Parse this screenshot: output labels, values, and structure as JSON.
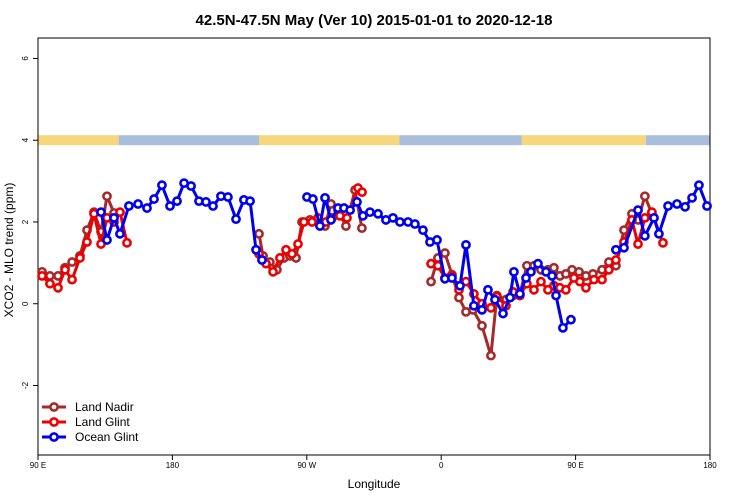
{
  "chart_data": {
    "type": "line",
    "title": "42.5N-47.5N May (Ver 10)   2015-01-01 to 2020-12-18",
    "x_label": "Longitude",
    "y_label": "XCO2 - MLO trend (ppm)",
    "xlim": [
      90,
      540
    ],
    "ylim": [
      -3.7,
      6.5
    ],
    "xticks": [
      {
        "value": 90,
        "label": "90 E"
      },
      180,
      {
        "value": 270,
        "label": "90 W"
      },
      {
        "value": 360,
        "label": "0"
      },
      {
        "value": 450,
        "label": "90 E"
      },
      {
        "value": 540,
        "label": "180"
      }
    ],
    "yticks": [
      -2,
      0,
      2,
      4,
      6
    ],
    "legend": "bottom-left",
    "surface_band": {
      "y": 4,
      "segments": [
        {
          "from": 90,
          "to": 144,
          "color": "#f7d77b"
        },
        {
          "from": 144,
          "to": 238,
          "color": "#a9bedb"
        },
        {
          "from": 238,
          "to": 332,
          "color": "#f7d77b"
        },
        {
          "from": 332,
          "to": 414,
          "color": "#a9bedb"
        },
        {
          "from": 414,
          "to": 497,
          "color": "#f7d77b"
        },
        {
          "from": 497,
          "to": 540,
          "color": "#a9bedb"
        }
      ]
    },
    "series": [
      {
        "name": "Land Nadir",
        "color": "#a52a2a",
        "x": [
          92.7,
          98.0,
          103.4,
          108.1,
          112.8,
          118.1,
          122.8,
          127.5,
          132.2,
          136.2,
          140.9,
          null,
          238.0,
          240.7,
          245.3,
          250.0,
          254.7,
          258.7,
          262.8,
          266.8,
          272.1,
          276.8,
          282.2,
          286.2,
          290.9,
          296.2,
          302.3,
          306.9,
          null,
          353.2,
          357.8,
          362.5,
          367.2,
          371.9,
          376.6,
          381.3,
          387.3,
          393.3,
          397.3,
          403.4,
          408.1,
          412.7,
          417.4,
          422.1,
          426.8,
          431.5,
          435.5,
          439.5,
          443.5,
          447.6,
          452.3,
          456.9,
          461.6,
          467.7,
          472.3,
          477.0,
          482.4,
          487.7,
          491.8,
          496.4,
          501.1
        ],
        "values": [
          0.78,
          0.68,
          0.68,
          0.88,
          1.02,
          1.17,
          1.8,
          2.24,
          1.76,
          2.63,
          2.22,
          null,
          1.71,
          1.17,
          1.02,
          0.83,
          1.12,
          1.17,
          1.12,
          2.0,
          2.05,
          2.0,
          1.9,
          2.44,
          2.29,
          1.9,
          2.78,
          1.85,
          null,
          0.54,
          1.12,
          1.24,
          0.71,
          0.15,
          -0.2,
          -0.15,
          -0.54,
          -1.27,
          0.2,
          0.1,
          0.2,
          0.24,
          0.93,
          0.93,
          0.83,
          0.83,
          0.88,
          0.68,
          0.73,
          0.83,
          0.78,
          0.68,
          0.73,
          0.83,
          1.02,
          0.93,
          1.8,
          2.2,
          2.05,
          2.63,
          2.2
        ]
      },
      {
        "name": "Land Glint",
        "color": "#ee0000",
        "x": [
          92.7,
          98.0,
          103.4,
          108.1,
          112.8,
          118.1,
          122.8,
          127.5,
          132.2,
          136.2,
          140.9,
          144.9,
          149.6,
          null,
          238.0,
          242.7,
          247.4,
          252.0,
          256.1,
          260.1,
          264.1,
          268.1,
          273.5,
          277.5,
          282.8,
          286.9,
          292.2,
          296.9,
          304.3,
          307.0,
          null,
          353.2,
          357.8,
          362.5,
          367.2,
          371.9,
          376.6,
          381.9,
          387.3,
          393.3,
          397.3,
          403.4,
          408.1,
          412.7,
          417.4,
          422.1,
          426.8,
          431.5,
          435.5,
          439.5,
          443.5,
          448.9,
          452.9,
          456.9,
          462.3,
          467.7,
          472.3,
          477.0,
          482.4,
          487.7,
          491.8,
          496.4,
          501.1,
          508.5
        ],
        "values": [
          0.68,
          0.49,
          0.39,
          0.83,
          0.59,
          1.12,
          1.51,
          2.2,
          1.46,
          2.1,
          2.0,
          2.24,
          1.49,
          null,
          1.22,
          0.98,
          0.78,
          1.12,
          1.32,
          1.22,
          1.46,
          2.0,
          2.0,
          2.1,
          2.0,
          2.1,
          2.15,
          2.1,
          2.83,
          2.73,
          null,
          0.98,
          0.93,
          0.63,
          0.68,
          0.34,
          0.54,
          0.24,
          0.0,
          -0.1,
          0.17,
          -0.05,
          0.29,
          0.2,
          0.49,
          0.34,
          0.54,
          0.34,
          0.44,
          0.39,
          0.34,
          0.63,
          0.54,
          0.39,
          0.59,
          0.59,
          0.83,
          1.07,
          1.51,
          2.05,
          1.46,
          2.1,
          2.24,
          1.49
        ]
      },
      {
        "name": "Ocean Glint",
        "color": "#0000ee",
        "x": [
          132.2,
          136.2,
          140.9,
          144.9,
          150.9,
          157.0,
          163.0,
          167.7,
          173.0,
          178.4,
          183.1,
          187.8,
          192.5,
          197.8,
          202.5,
          207.2,
          212.5,
          217.2,
          222.6,
          227.9,
          232.0,
          236.0,
          240.0,
          null,
          270.1,
          274.1,
          278.8,
          282.2,
          286.2,
          290.9,
          294.9,
          299.0,
          303.6,
          307.6,
          312.3,
          317.7,
          323.0,
          327.7,
          332.4,
          337.8,
          342.4,
          347.8,
          352.5,
          357.2,
          362.5,
          367.2,
          372.6,
          376.6,
          381.9,
          387.3,
          391.3,
          396.0,
          401.4,
          406.1,
          408.7,
          412.7,
          416.8,
          420.1,
          424.8,
          430.2,
          434.2,
          436.9,
          441.5,
          446.9,
          null,
          477.0,
          482.4,
          491.8,
          496.4,
          502.5,
          505.8,
          511.9,
          517.9,
          523.3,
          528.0,
          532.6,
          538.0
        ],
        "values": [
          2.24,
          1.56,
          2.1,
          1.71,
          2.39,
          2.44,
          2.34,
          2.56,
          2.9,
          2.39,
          2.51,
          2.95,
          2.88,
          2.51,
          2.49,
          2.39,
          2.63,
          2.61,
          2.07,
          2.54,
          2.51,
          1.32,
          1.07,
          null,
          2.61,
          2.56,
          1.9,
          2.59,
          2.05,
          2.34,
          2.34,
          2.29,
          2.49,
          2.15,
          2.24,
          2.2,
          2.05,
          2.1,
          2.0,
          2.0,
          1.95,
          1.8,
          1.51,
          1.56,
          0.61,
          0.63,
          0.44,
          1.44,
          -0.05,
          -0.15,
          0.34,
          0.1,
          -0.24,
          0.15,
          0.78,
          0.24,
          0.63,
          0.78,
          0.98,
          0.78,
          0.68,
          0.2,
          -0.59,
          -0.39,
          null,
          1.32,
          1.37,
          2.29,
          1.66,
          2.1,
          1.71,
          2.39,
          2.44,
          2.37,
          2.59,
          2.9,
          2.39
        ]
      }
    ]
  }
}
